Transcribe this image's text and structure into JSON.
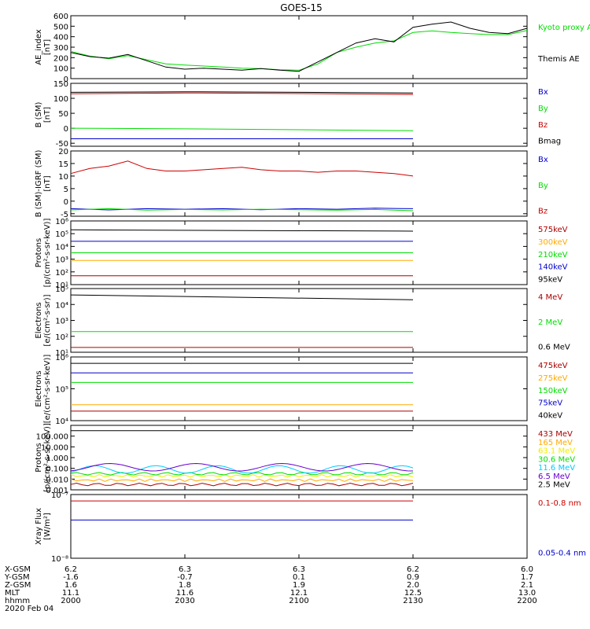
{
  "title": "GOES-15",
  "colors": {
    "black": "#000000",
    "green": "#00dd00",
    "blue": "#0000cc",
    "red": "#cc0000",
    "orange": "#ffaa00",
    "cyan": "#00ccff",
    "yellow": "#eeee00",
    "darkred": "#aa0000",
    "purple": "#6600cc"
  },
  "x_axis": {
    "time_ticks": [
      "2000",
      "2030",
      "2100",
      "2130",
      "2200"
    ],
    "rows": [
      {
        "label": "X-GSM",
        "values": [
          "6.2",
          "6.3",
          "6.3",
          "6.2",
          "6.0"
        ]
      },
      {
        "label": "Y-GSM",
        "values": [
          "-1.6",
          "-0.7",
          "0.1",
          "0.9",
          "1.7"
        ]
      },
      {
        "label": "Z-GSM",
        "values": [
          "1.6",
          "1.8",
          "1.9",
          "2.0",
          "2.1"
        ]
      },
      {
        "label": "MLT",
        "values": [
          "11.1",
          "11.6",
          "12.1",
          "12.5",
          "13.0"
        ]
      },
      {
        "label": "hhmm",
        "values": [
          "2000",
          "2030",
          "2100",
          "2130",
          "2200"
        ]
      }
    ],
    "date": "2020 Feb 04"
  },
  "chart_data": [
    {
      "id": "ae",
      "type": "line",
      "ylabel": "AE_index [nT]",
      "ylim": [
        0,
        600
      ],
      "yticks": [
        "0",
        "100",
        "200",
        "300",
        "400",
        "500",
        "600"
      ],
      "scale": "linear",
      "series": [
        {
          "name": "Kyoto proxy AE",
          "color": "green",
          "x": [
            0,
            5,
            10,
            15,
            20,
            25,
            30,
            35,
            40,
            45,
            50,
            55,
            60,
            65,
            70,
            75,
            80,
            85,
            90,
            95,
            100,
            105,
            110,
            115,
            120
          ],
          "y": [
            260,
            215,
            190,
            220,
            180,
            140,
            130,
            120,
            110,
            100,
            95,
            85,
            80,
            140,
            250,
            300,
            340,
            360,
            440,
            455,
            440,
            430,
            420,
            420,
            460
          ]
        },
        {
          "name": "Themis AE",
          "color": "black",
          "x": [
            0,
            5,
            10,
            15,
            20,
            25,
            30,
            35,
            40,
            45,
            50,
            55,
            60,
            65,
            70,
            75,
            80,
            85,
            90,
            95,
            100,
            105,
            110,
            115,
            120
          ],
          "y": [
            250,
            210,
            195,
            230,
            170,
            110,
            90,
            100,
            90,
            80,
            95,
            80,
            70,
            160,
            250,
            340,
            380,
            350,
            490,
            520,
            540,
            480,
            440,
            430,
            480
          ]
        }
      ]
    },
    {
      "id": "bsm",
      "type": "line",
      "ylabel": "B (SM) [nT]",
      "ylim": [
        -60,
        150
      ],
      "yticks": [
        "-50",
        "0",
        "50",
        "100",
        "150"
      ],
      "scale": "linear",
      "series": [
        {
          "name": "Bx",
          "color": "blue",
          "x": [
            0,
            90
          ],
          "y": [
            -35,
            -35
          ]
        },
        {
          "name": "By",
          "color": "green",
          "x": [
            0,
            30,
            60,
            90
          ],
          "y": [
            0,
            -2,
            -5,
            -8
          ]
        },
        {
          "name": "Bz",
          "color": "red",
          "x": [
            0,
            30,
            60,
            90
          ],
          "y": [
            115,
            118,
            116,
            113
          ]
        },
        {
          "name": "Bmag",
          "color": "black",
          "x": [
            0,
            30,
            60,
            90
          ],
          "y": [
            120,
            122,
            120,
            118
          ]
        }
      ]
    },
    {
      "id": "bigrf",
      "type": "line",
      "ylabel": "B (SM)-IGRF (SM) [nT]",
      "ylim": [
        -6,
        20
      ],
      "yticks": [
        "-5",
        "0",
        "5",
        "10",
        "15",
        "20"
      ],
      "scale": "linear",
      "series": [
        {
          "name": "Bx",
          "color": "blue",
          "x": [
            0,
            10,
            20,
            30,
            40,
            50,
            60,
            70,
            80,
            90
          ],
          "y": [
            -3,
            -3.5,
            -3,
            -3.2,
            -3,
            -3.4,
            -3,
            -3.2,
            -2.8,
            -3
          ]
        },
        {
          "name": "By",
          "color": "green",
          "x": [
            0,
            10,
            20,
            30,
            40,
            50,
            60,
            70,
            80,
            90
          ],
          "y": [
            -3.5,
            -3,
            -3.6,
            -3.3,
            -3.5,
            -3.2,
            -3.4,
            -3.6,
            -3.3,
            -3.8
          ]
        },
        {
          "name": "Bz",
          "color": "red",
          "x": [
            0,
            5,
            10,
            15,
            20,
            25,
            30,
            35,
            40,
            45,
            50,
            55,
            60,
            65,
            70,
            75,
            80,
            85,
            90
          ],
          "y": [
            11,
            13,
            14,
            16,
            13,
            12,
            12,
            12.5,
            13,
            13.5,
            12.5,
            12,
            12,
            11.5,
            12,
            12,
            11.5,
            11,
            10
          ]
        }
      ]
    },
    {
      "id": "protons1",
      "type": "line",
      "ylabel": "Protons [p/(cm²-s-sr-keV)]",
      "ylim": [
        1,
        6
      ],
      "yticks": [
        "10¹",
        "10²",
        "10³",
        "10⁴",
        "10⁵",
        "10⁶"
      ],
      "scale": "log",
      "series": [
        {
          "name": "575keV",
          "color": "darkred",
          "x": [
            0,
            90
          ],
          "y": [
            1.7,
            1.7
          ]
        },
        {
          "name": "300keV",
          "color": "orange",
          "x": [
            0,
            90
          ],
          "y": [
            2.9,
            2.9
          ]
        },
        {
          "name": "210keV",
          "color": "green",
          "x": [
            0,
            90
          ],
          "y": [
            3.5,
            3.5
          ]
        },
        {
          "name": "140keV",
          "color": "blue",
          "x": [
            0,
            90
          ],
          "y": [
            4.4,
            4.4
          ]
        },
        {
          "name": "95keV",
          "color": "black",
          "x": [
            0,
            90
          ],
          "y": [
            5.3,
            5.2
          ]
        }
      ]
    },
    {
      "id": "electrons1",
      "type": "line",
      "ylabel": "Electrons [e/(cm²-s-sr)]",
      "ylim": [
        1,
        5
      ],
      "yticks": [
        "10¹",
        "10²",
        "10³",
        "10⁴",
        "10⁵"
      ],
      "scale": "log",
      "series": [
        {
          "name": "4 MeV",
          "color": "darkred",
          "x": [
            0,
            90
          ],
          "y": [
            1.3,
            1.3
          ]
        },
        {
          "name": "2 MeV",
          "color": "green",
          "x": [
            0,
            90
          ],
          "y": [
            2.3,
            2.3
          ]
        },
        {
          "name": "0.6 MeV",
          "color": "black",
          "x": [
            0,
            90
          ],
          "y": [
            4.6,
            4.3
          ]
        }
      ]
    },
    {
      "id": "electrons2",
      "type": "line",
      "ylabel": "Electrons [e/(cm²-s-sr-keV)]",
      "ylim": [
        4,
        6
      ],
      "yticks": [
        "10⁴",
        "10⁵",
        "10⁶"
      ],
      "scale": "log",
      "series": [
        {
          "name": "475keV",
          "color": "darkred",
          "x": [
            0,
            90
          ],
          "y": [
            4.3,
            4.3
          ]
        },
        {
          "name": "275keV",
          "color": "orange",
          "x": [
            0,
            90
          ],
          "y": [
            4.5,
            4.5
          ]
        },
        {
          "name": "150keV",
          "color": "green",
          "x": [
            0,
            30,
            60,
            90
          ],
          "y": [
            5.2,
            5.2,
            5.2,
            5.2
          ]
        },
        {
          "name": "75keV",
          "color": "blue",
          "x": [
            0,
            90
          ],
          "y": [
            5.5,
            5.5
          ]
        },
        {
          "name": "40keV",
          "color": "black",
          "x": [
            0,
            90
          ],
          "y": [
            5.8,
            5.8
          ]
        }
      ]
    },
    {
      "id": "protons2",
      "type": "line",
      "ylabel": "Protons [p/(cm²-s-sr-keV)]",
      "ylim": [
        -3,
        3
      ],
      "yticks": [
        "0.001",
        "0.010",
        "0.100",
        "1.000",
        "10.000",
        "100.000"
      ],
      "yticks_log": [
        -3,
        -2,
        -1,
        0,
        1,
        2
      ],
      "scale": "log",
      "series": [
        {
          "name": "433 MeV",
          "color": "darkred",
          "x": [
            0,
            90
          ],
          "y": [
            -2.5,
            -2.5
          ]
        },
        {
          "name": "165 MeV",
          "color": "orange",
          "x": [
            0,
            90
          ],
          "y": [
            -2.1,
            -2.1
          ]
        },
        {
          "name": "63.1 MeV",
          "color": "yellow",
          "x": [
            0,
            90
          ],
          "y": [
            -1.7,
            -1.7
          ]
        },
        {
          "name": "30.6 MeV",
          "color": "green",
          "x": [
            0,
            90
          ],
          "y": [
            -1.5,
            -1.5
          ]
        },
        {
          "name": "11.6 MeV",
          "color": "cyan",
          "x": [
            0,
            90
          ],
          "y": [
            -1.1,
            -1.1
          ]
        },
        {
          "name": "6.5 MeV",
          "color": "purple",
          "x": [
            0,
            90
          ],
          "y": [
            -0.9,
            -0.9
          ]
        },
        {
          "name": "2.5 MeV",
          "color": "black",
          "x": [
            0,
            90
          ],
          "y": [
            2.5,
            2.5
          ]
        }
      ]
    },
    {
      "id": "xray",
      "type": "line",
      "ylabel": "Xray Flux [W/m²]",
      "ylim": [
        -8,
        -7
      ],
      "yticks": [
        "10⁻⁸",
        "10⁻⁷"
      ],
      "scale": "log",
      "series": [
        {
          "name": "0.1-0.8 nm",
          "color": "red",
          "x": [
            0,
            90
          ],
          "y": [
            -7.1,
            -7.1
          ]
        },
        {
          "name": "0.05-0.4 nm",
          "color": "blue",
          "x": [
            0,
            90
          ],
          "y": [
            -7.4,
            -7.4
          ]
        }
      ]
    }
  ]
}
